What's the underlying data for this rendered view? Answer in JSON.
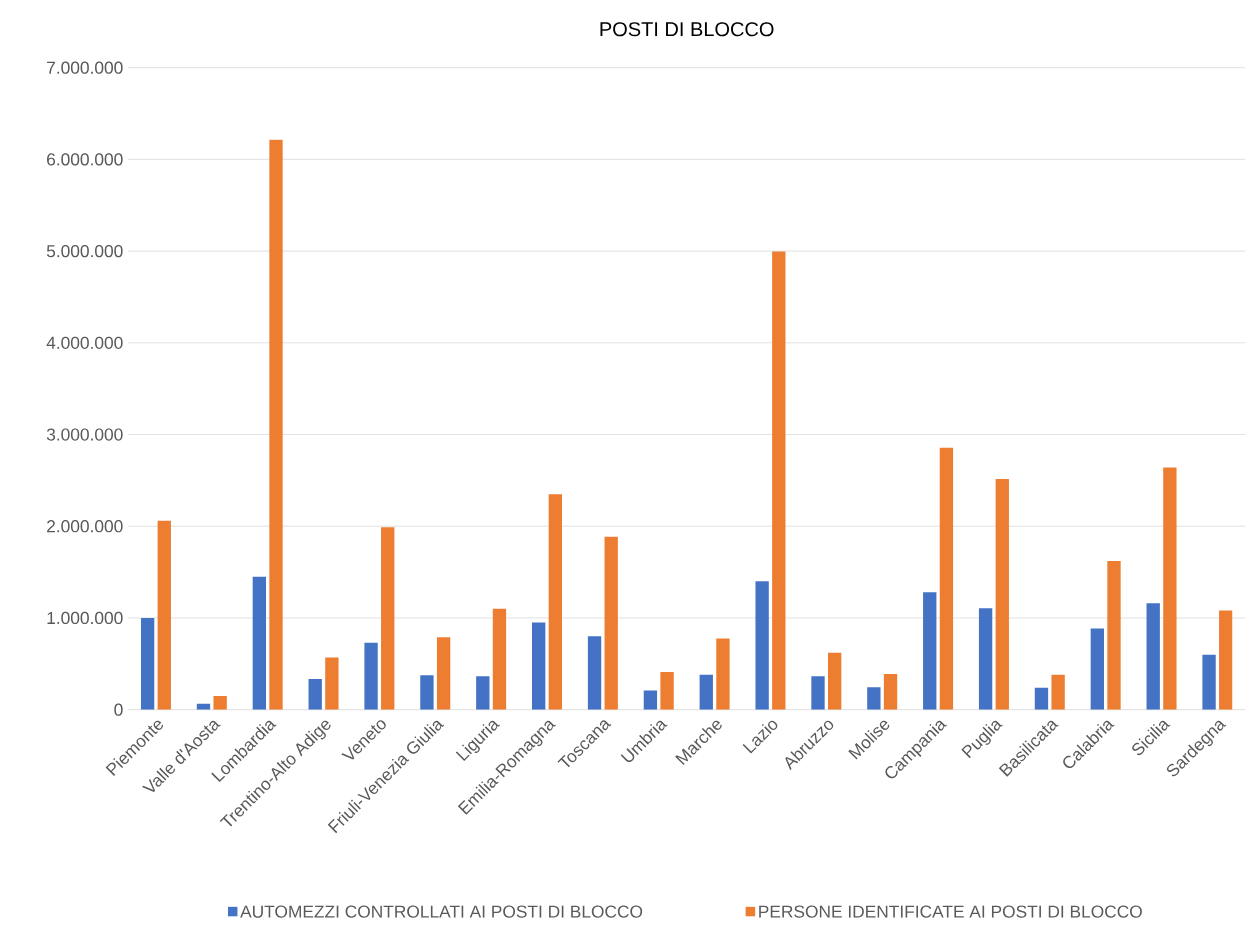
{
  "chart_data": {
    "type": "bar",
    "title": "POSTI DI BLOCCO",
    "categories": [
      "Piemonte",
      "Valle d'Aosta",
      "Lombardia",
      "Trentino-Alto Adige",
      "Veneto",
      "Friuli-Venezia Giulia",
      "Liguria",
      "Emilia-Romagna",
      "Toscana",
      "Umbria",
      "Marche",
      "Lazio",
      "Abruzzo",
      "Molise",
      "Campania",
      "Puglia",
      "Basilicata",
      "Calabria",
      "Sicilia",
      "Sardegna"
    ],
    "series": [
      {
        "name": "AUTOMEZZI CONTROLLATI AI POSTI DI BLOCCO",
        "color": "#4472c4",
        "values": [
          1000000,
          65000,
          1450000,
          335000,
          730000,
          375000,
          365000,
          950000,
          800000,
          210000,
          380000,
          1400000,
          365000,
          245000,
          1280000,
          1105000,
          240000,
          885000,
          1160000,
          600000
        ]
      },
      {
        "name": "PERSONE IDENTIFICATE AI POSTI DI BLOCCO",
        "color": "#ed7d31",
        "values": [
          2060000,
          150000,
          6215000,
          570000,
          1990000,
          790000,
          1100000,
          2350000,
          1885000,
          410000,
          775000,
          4995000,
          620000,
          390000,
          2855000,
          2515000,
          380000,
          1620000,
          2640000,
          1080000
        ]
      }
    ],
    "ylim": [
      0,
      7000000
    ],
    "yticks": [
      {
        "value": 0,
        "label": "0"
      },
      {
        "value": 1000000,
        "label": "1.000.000"
      },
      {
        "value": 2000000,
        "label": "2.000.000"
      },
      {
        "value": 3000000,
        "label": "3.000.000"
      },
      {
        "value": 4000000,
        "label": "4.000.000"
      },
      {
        "value": 5000000,
        "label": "5.000.000"
      },
      {
        "value": 6000000,
        "label": "6.000.000"
      },
      {
        "value": 7000000,
        "label": "7.000.000"
      }
    ],
    "grid": "y",
    "legend": "bottom"
  }
}
